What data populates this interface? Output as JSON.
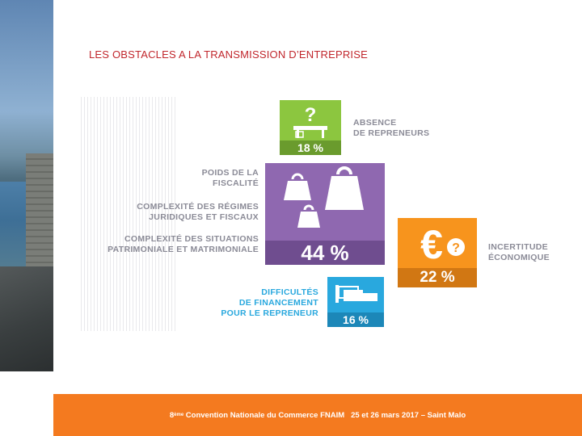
{
  "slide_title": "LES OBSTACLES A LA TRANSMISSION D’ENTREPRISE",
  "colors": {
    "green": "#8cc63f",
    "purple": "#8f68b0",
    "orange": "#f7941d",
    "blue": "#29a8de",
    "title": "#c1272d",
    "footer": "#f47a1f"
  },
  "obstacles": {
    "repreneurs": {
      "label_line1": "ABSENCE",
      "label_line2": "DE REPRENEURS",
      "percent": "18 %",
      "value": 18,
      "icon": "question-desk-icon"
    },
    "fiscal": {
      "label1_line1": "POIDS DE LA",
      "label1_line2": "FISCALITÉ",
      "label2_line1": "COMPLEXITÉ DES RÉGIMES",
      "label2_line2": "JURIDIQUES ET FISCAUX",
      "label3_line1": "COMPLEXITÉ DES SITUATIONS",
      "label3_line2": "PATRIMONIALE ET MATRIMONIALE",
      "percent": "44 %",
      "value": 44,
      "icon": "weights-icon"
    },
    "economique": {
      "label_line1": "INCERTITUDE",
      "label_line2": "ÉCONOMIQUE",
      "percent": "22 %",
      "value": 22,
      "icon_symbol": "€",
      "icon_question": "?"
    },
    "financement": {
      "label_line1": "DIFFICULTÉS",
      "label_line2": "DE FINANCEMENT",
      "label_line3": "POUR LE REPRENEUR",
      "percent": "16 %",
      "value": 16,
      "icon": "money-hand-icon"
    }
  },
  "footer": {
    "ordinal": "8",
    "ordinal_suffix": "ème",
    "text": " Convention Nationale du Commerce FNAIM   25 et 26 mars 2017 – Saint Malo"
  }
}
